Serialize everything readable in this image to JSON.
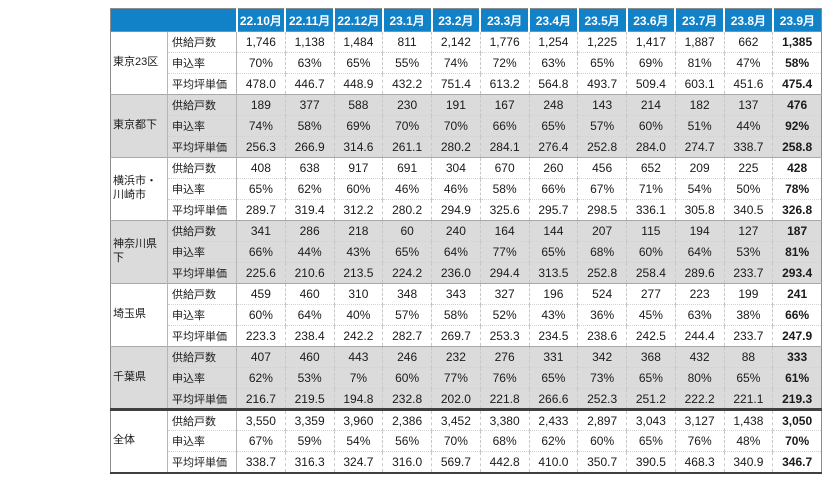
{
  "page": {
    "background": "#ffffff"
  },
  "table": {
    "corner_label": "",
    "months": [
      "22.10月",
      "22.11月",
      "22.12月",
      "23.1月",
      "23.2月",
      "23.3月",
      "23.4月",
      "23.5月",
      "23.6月",
      "23.7月",
      "23.8月",
      "23.9月"
    ],
    "metric_labels": [
      "供給戸数",
      "申込率",
      "平均坪単価"
    ],
    "regions": [
      {
        "name": "東京23区",
        "rows": [
          {
            "label": "供給戸数",
            "values": [
              "1,746",
              "1,138",
              "1,484",
              "811",
              "2,142",
              "1,776",
              "1,254",
              "1,225",
              "1,417",
              "1,887",
              "662",
              "1,385"
            ]
          },
          {
            "label": "申込率",
            "values": [
              "70%",
              "63%",
              "65%",
              "55%",
              "74%",
              "72%",
              "63%",
              "65%",
              "69%",
              "81%",
              "47%",
              "58%"
            ]
          },
          {
            "label": "平均坪単価",
            "values": [
              "478.0",
              "446.7",
              "448.9",
              "432.2",
              "751.4",
              "613.2",
              "564.8",
              "493.7",
              "509.4",
              "603.1",
              "451.6",
              "475.4"
            ]
          }
        ]
      },
      {
        "name": "東京都下",
        "rows": [
          {
            "label": "供給戸数",
            "values": [
              "189",
              "377",
              "588",
              "230",
              "191",
              "167",
              "248",
              "143",
              "214",
              "182",
              "137",
              "476"
            ]
          },
          {
            "label": "申込率",
            "values": [
              "74%",
              "58%",
              "69%",
              "70%",
              "70%",
              "66%",
              "65%",
              "57%",
              "60%",
              "51%",
              "44%",
              "92%"
            ]
          },
          {
            "label": "平均坪単価",
            "values": [
              "256.3",
              "266.9",
              "314.6",
              "261.1",
              "280.2",
              "284.1",
              "276.4",
              "252.8",
              "284.0",
              "274.7",
              "338.7",
              "258.8"
            ]
          }
        ]
      },
      {
        "name": "横浜市・\n川崎市",
        "rows": [
          {
            "label": "供給戸数",
            "values": [
              "408",
              "638",
              "917",
              "691",
              "304",
              "670",
              "260",
              "456",
              "652",
              "209",
              "225",
              "428"
            ]
          },
          {
            "label": "申込率",
            "values": [
              "65%",
              "62%",
              "60%",
              "46%",
              "46%",
              "58%",
              "66%",
              "67%",
              "71%",
              "54%",
              "50%",
              "78%"
            ]
          },
          {
            "label": "平均坪単価",
            "values": [
              "289.7",
              "319.4",
              "312.2",
              "280.2",
              "294.9",
              "325.6",
              "295.7",
              "298.5",
              "336.1",
              "305.8",
              "340.5",
              "326.8"
            ]
          }
        ]
      },
      {
        "name": "神奈川県下",
        "rows": [
          {
            "label": "供給戸数",
            "values": [
              "341",
              "286",
              "218",
              "60",
              "240",
              "164",
              "144",
              "207",
              "115",
              "194",
              "127",
              "187"
            ]
          },
          {
            "label": "申込率",
            "values": [
              "66%",
              "44%",
              "43%",
              "65%",
              "64%",
              "77%",
              "65%",
              "68%",
              "60%",
              "64%",
              "53%",
              "81%"
            ]
          },
          {
            "label": "平均坪単価",
            "values": [
              "225.6",
              "210.6",
              "213.5",
              "224.2",
              "236.0",
              "294.4",
              "313.5",
              "252.8",
              "258.4",
              "289.6",
              "233.7",
              "293.4"
            ]
          }
        ]
      },
      {
        "name": "埼玉県",
        "rows": [
          {
            "label": "供給戸数",
            "values": [
              "459",
              "460",
              "310",
              "348",
              "343",
              "327",
              "196",
              "524",
              "277",
              "223",
              "199",
              "241"
            ]
          },
          {
            "label": "申込率",
            "values": [
              "60%",
              "64%",
              "40%",
              "57%",
              "58%",
              "52%",
              "43%",
              "36%",
              "45%",
              "63%",
              "38%",
              "66%"
            ]
          },
          {
            "label": "平均坪単価",
            "values": [
              "223.3",
              "238.4",
              "242.2",
              "282.7",
              "269.7",
              "253.3",
              "234.5",
              "238.6",
              "242.5",
              "244.4",
              "233.7",
              "247.9"
            ]
          }
        ]
      },
      {
        "name": "千葉県",
        "rows": [
          {
            "label": "供給戸数",
            "values": [
              "407",
              "460",
              "443",
              "246",
              "232",
              "276",
              "331",
              "342",
              "368",
              "432",
              "88",
              "333"
            ]
          },
          {
            "label": "申込率",
            "values": [
              "62%",
              "53%",
              "7%",
              "60%",
              "77%",
              "76%",
              "65%",
              "73%",
              "65%",
              "80%",
              "65%",
              "61%"
            ]
          },
          {
            "label": "平均坪単価",
            "values": [
              "216.7",
              "219.5",
              "194.8",
              "232.8",
              "202.0",
              "221.8",
              "266.6",
              "252.3",
              "251.2",
              "222.2",
              "221.1",
              "219.3"
            ]
          }
        ]
      },
      {
        "name": "全体",
        "rows": [
          {
            "label": "供給戸数",
            "values": [
              "3,550",
              "3,359",
              "3,960",
              "2,386",
              "3,452",
              "3,380",
              "2,433",
              "2,897",
              "3,043",
              "3,127",
              "1,438",
              "3,050"
            ]
          },
          {
            "label": "申込率",
            "values": [
              "67%",
              "59%",
              "54%",
              "56%",
              "70%",
              "68%",
              "62%",
              "60%",
              "65%",
              "76%",
              "48%",
              "70%"
            ]
          },
          {
            "label": "平均坪単価",
            "values": [
              "338.7",
              "316.3",
              "324.7",
              "316.0",
              "569.7",
              "442.8",
              "410.0",
              "350.7",
              "390.5",
              "468.3",
              "340.9",
              "346.7"
            ]
          }
        ]
      }
    ],
    "colors": {
      "header_bg": "#1181C8",
      "header_text": "#ffffff",
      "stripe_bg": "#DBDBDB",
      "body_bg": "#ffffff",
      "thick_border": "#404040",
      "grid_line": "#c8c8c8"
    }
  }
}
